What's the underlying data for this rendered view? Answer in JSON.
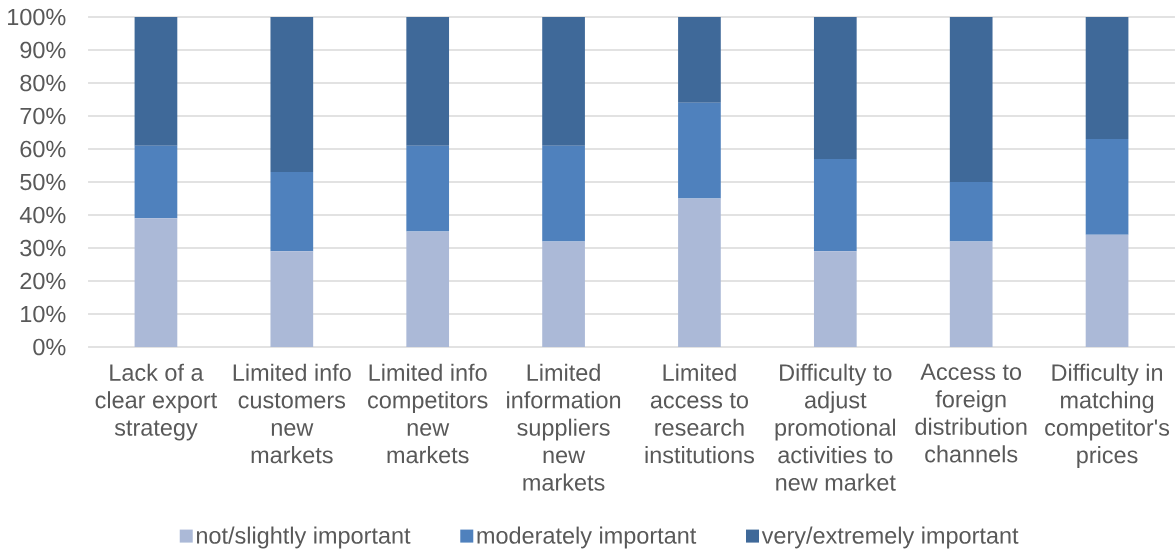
{
  "chart_data": {
    "type": "bar",
    "stacked": true,
    "categories": [
      "Lack of a clear export strategy",
      "Limited info customers new markets",
      "Limited info competitors new markets",
      "Limited information suppliers new markets",
      "Limited access to research institutions",
      "Difficulty to adjust promotional activities to new market",
      "Access to foreign distribution channels",
      "Difficulty in matching competitor's prices"
    ],
    "series": [
      {
        "name": "not/slightly important",
        "color": "#abb9d7",
        "values": [
          39,
          29,
          35,
          32,
          45,
          29,
          32,
          34
        ]
      },
      {
        "name": "moderately important",
        "color": "#4f81bd",
        "values": [
          22,
          24,
          26,
          29,
          29,
          28,
          18,
          29
        ]
      },
      {
        "name": "very/extremely important",
        "color": "#3f6999",
        "values": [
          39,
          47,
          39,
          39,
          26,
          43,
          50,
          37
        ]
      }
    ],
    "ylim": [
      0,
      100
    ],
    "yticks": [
      {
        "value": 0,
        "label": "0%"
      },
      {
        "value": 10,
        "label": "10%"
      },
      {
        "value": 20,
        "label": "20%"
      },
      {
        "value": 30,
        "label": "30%"
      },
      {
        "value": 40,
        "label": "40%"
      },
      {
        "value": 50,
        "label": "50%"
      },
      {
        "value": 60,
        "label": "60%"
      },
      {
        "value": 70,
        "label": "70%"
      },
      {
        "value": 80,
        "label": "80%"
      },
      {
        "value": 90,
        "label": "90%"
      },
      {
        "value": 100,
        "label": "100%"
      }
    ],
    "grid": "y",
    "legend": "bottom"
  }
}
